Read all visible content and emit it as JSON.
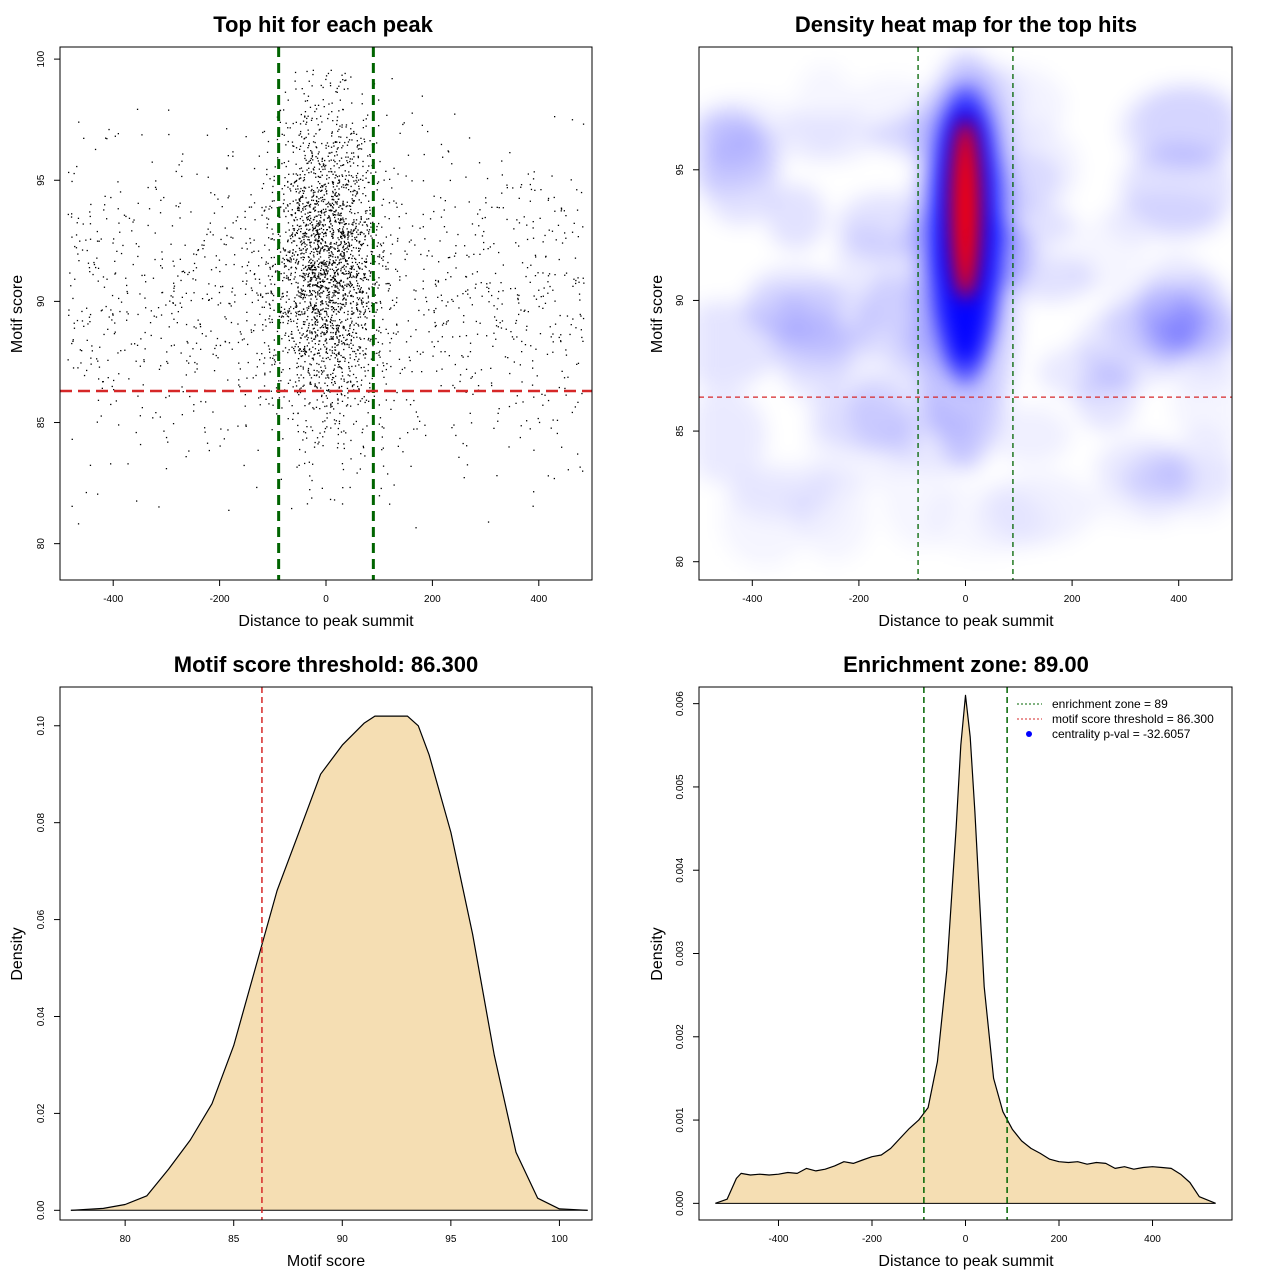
{
  "chart_data": [
    {
      "type": "scatter",
      "title": "Top hit for each peak",
      "xlabel": "Distance to peak summit",
      "ylabel": "Motif score",
      "xlim": [
        -500,
        500
      ],
      "ylim": [
        78.5,
        100.5
      ],
      "xticks": [
        -400,
        -200,
        0,
        200,
        400
      ],
      "yticks": [
        80,
        85,
        90,
        95,
        100
      ],
      "vlines": [
        -89,
        89
      ],
      "vline_color": "#006400",
      "hline": 86.3,
      "hline_color": "#d62728",
      "point_color": "#000000",
      "distribution": {
        "background": {
          "x_range": [
            -485,
            485
          ],
          "y_range": [
            80.5,
            98
          ],
          "approx_count": 1300
        },
        "central": {
          "x_center": 0,
          "x_spread": 50,
          "y_center": 91.5,
          "y_spread": 3.2,
          "approx_count": 2400
        }
      }
    },
    {
      "type": "heatmap",
      "title": "Density heat map for the top hits",
      "xlabel": "Distance to peak summit",
      "ylabel": "Motif score",
      "xlim": [
        -500,
        500
      ],
      "ylim": [
        79.3,
        99.7
      ],
      "xticks": [
        -400,
        -200,
        0,
        200,
        400
      ],
      "yticks": [
        80,
        85,
        90,
        95
      ],
      "vlines": [
        -89,
        89
      ],
      "vline_color": "#006400",
      "hline": 86.3,
      "hline_color": "#d62728",
      "color_scale": [
        "#ffffff",
        "#0000ff",
        "#ff0000"
      ],
      "hotspot": {
        "x": 0,
        "y": 93.5
      }
    },
    {
      "type": "area",
      "title": "Motif score threshold: 86.300",
      "xlabel": "Motif score",
      "ylabel": "Density",
      "xlim": [
        77,
        101.5
      ],
      "ylim": [
        -0.002,
        0.108
      ],
      "xticks": [
        80,
        85,
        90,
        95,
        100
      ],
      "yticks": [
        0.0,
        0.02,
        0.04,
        0.06,
        0.08,
        0.1
      ],
      "ytick_labels": [
        "0.00",
        "0.02",
        "0.04",
        "0.06",
        "0.08",
        "0.10"
      ],
      "fill_color": "#f5deb3",
      "vline": 86.3,
      "vline_color": "#d62728",
      "x": [
        77.5,
        79,
        80,
        81,
        82,
        83,
        84,
        85,
        86,
        87,
        88,
        89,
        90,
        91,
        91.5,
        92,
        93,
        93.5,
        94,
        95,
        96,
        97,
        98,
        99,
        100,
        101.3
      ],
      "y": [
        0.0,
        0.0004,
        0.0012,
        0.003,
        0.0085,
        0.0145,
        0.022,
        0.034,
        0.05,
        0.066,
        0.078,
        0.09,
        0.096,
        0.1005,
        0.102,
        0.102,
        0.102,
        0.1,
        0.094,
        0.078,
        0.057,
        0.032,
        0.012,
        0.0025,
        0.0003,
        0.0
      ]
    },
    {
      "type": "area",
      "title": "Enrichment zone: 89.00",
      "xlabel": "Distance to peak summit",
      "ylabel": "Density",
      "xlim": [
        -570,
        570
      ],
      "ylim": [
        -0.0002,
        0.0062
      ],
      "xticks": [
        -400,
        -200,
        0,
        200,
        400
      ],
      "yticks": [
        0.0,
        0.001,
        0.002,
        0.003,
        0.004,
        0.005,
        0.006
      ],
      "ytick_labels": [
        "0.000",
        "0.001",
        "0.002",
        "0.003",
        "0.004",
        "0.005",
        "0.006"
      ],
      "fill_color": "#f5deb3",
      "vlines": [
        -89,
        89
      ],
      "vline_color": "#006400",
      "x": [
        -535,
        -510,
        -490,
        -480,
        -460,
        -440,
        -420,
        -400,
        -380,
        -360,
        -340,
        -320,
        -300,
        -280,
        -260,
        -240,
        -220,
        -200,
        -180,
        -160,
        -140,
        -120,
        -100,
        -80,
        -60,
        -40,
        -20,
        -10,
        0,
        10,
        20,
        40,
        60,
        80,
        100,
        120,
        140,
        160,
        180,
        200,
        220,
        240,
        260,
        280,
        300,
        320,
        340,
        360,
        380,
        400,
        420,
        440,
        460,
        480,
        500,
        535
      ],
      "y": [
        0.0,
        5e-05,
        0.0003,
        0.00036,
        0.00034,
        0.00035,
        0.00034,
        0.00035,
        0.00037,
        0.00036,
        0.00042,
        0.00039,
        0.00041,
        0.00045,
        0.0005,
        0.00048,
        0.00052,
        0.00056,
        0.00058,
        0.00066,
        0.00078,
        0.0009,
        0.001,
        0.00115,
        0.0017,
        0.0028,
        0.0045,
        0.0055,
        0.0061,
        0.0056,
        0.0047,
        0.0026,
        0.0015,
        0.0011,
        0.00089,
        0.00075,
        0.00066,
        0.0006,
        0.00053,
        0.0005,
        0.00049,
        0.0005,
        0.00047,
        0.00049,
        0.00048,
        0.00042,
        0.00044,
        0.00041,
        0.00043,
        0.00044,
        0.00043,
        0.00042,
        0.00035,
        0.00025,
        8e-05,
        0.0
      ],
      "legend": {
        "position": "top-right",
        "items": [
          {
            "label": "enrichment zone = 89",
            "color": "#006400",
            "style": "dotted-line"
          },
          {
            "label": "motif score threshold = 86.300",
            "color": "#d62728",
            "style": "dotted-line"
          },
          {
            "label": "centrality p-val = -32.6057",
            "color": "#0000ff",
            "style": "point"
          }
        ]
      }
    }
  ]
}
